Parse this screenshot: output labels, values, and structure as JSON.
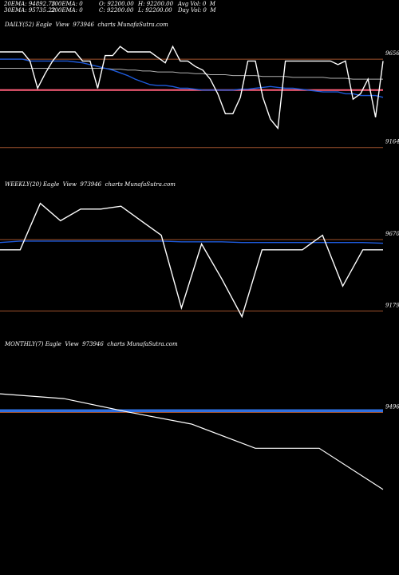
{
  "header": {
    "ema20": "20EMA: 94892.73",
    "ema100": "100EMA: 0",
    "open": "O: 92200.00",
    "high": "H: 92200.00",
    "avgvol": "Avg Vol: 0  M",
    "ema30": "30EMA: 95735.22",
    "ema200": "200EMA: 0",
    "close": "C: 92200.00",
    "low": "L: 92200.00",
    "dayvol": "Day Vol: 0  M"
  },
  "chart_data": [
    {
      "type": "line",
      "title": "DAILY(52) Eagle  View  973946  charts MunafaSutra.com",
      "ylim": [
        90000,
        98000
      ],
      "x": [
        1,
        2,
        3,
        4,
        5,
        6,
        7,
        8,
        9,
        10,
        11,
        12,
        13,
        14,
        15,
        16,
        17,
        18,
        19,
        20,
        21,
        22,
        23,
        24,
        25,
        26,
        27,
        28,
        29,
        30,
        31,
        32,
        33,
        34,
        35,
        36,
        37,
        38,
        39,
        40,
        41,
        42,
        43,
        44,
        45,
        46,
        47,
        48,
        49,
        50,
        51,
        52
      ],
      "series": [
        {
          "values": [
            96900,
            96900,
            96900,
            96900,
            96400,
            94900,
            95700,
            96400,
            96900,
            96900,
            96900,
            96400,
            96400,
            94900,
            96700,
            96700,
            97200,
            96900,
            96900,
            96900,
            96900,
            96600,
            96300,
            97200,
            96400,
            96400,
            96100,
            95900,
            95400,
            94600,
            93500,
            93500,
            94400,
            96400,
            96400,
            94400,
            93200,
            92700,
            96400,
            96400,
            96400,
            96400,
            96400,
            96400,
            96400,
            96200,
            96400,
            94300,
            94600,
            95400,
            93300,
            96400
          ]
        },
        {
          "values": [
            96500,
            96500,
            96500,
            96500,
            96400,
            96400,
            96400,
            96400,
            96400,
            96400,
            96350,
            96300,
            96200,
            96100,
            96000,
            95900,
            95750,
            95600,
            95400,
            95250,
            95100,
            95050,
            95050,
            95000,
            94900,
            94900,
            94850,
            94800,
            94800,
            94800,
            94800,
            94800,
            94850,
            94850,
            94900,
            94950,
            95000,
            94950,
            94900,
            94900,
            94850,
            94800,
            94750,
            94700,
            94700,
            94700,
            94600,
            94600,
            94500,
            94500,
            94500,
            94400
          ]
        },
        {
          "values": [
            96000,
            96000,
            96000,
            96000,
            96000,
            96000,
            96000,
            96000,
            96000,
            96000,
            96000,
            96000,
            96000,
            96000,
            96000,
            95950,
            95950,
            95900,
            95900,
            95850,
            95850,
            95800,
            95800,
            95800,
            95750,
            95750,
            95700,
            95700,
            95650,
            95650,
            95650,
            95600,
            95600,
            95600,
            95600,
            95550,
            95550,
            95550,
            95550,
            95500,
            95500,
            95500,
            95500,
            95500,
            95450,
            95450,
            95450,
            95400,
            95400,
            95400,
            95400,
            95400
          ]
        },
        {
          "values": [
            94800,
            94800,
            94800,
            94800,
            94800,
            94800,
            94800,
            94800,
            94800,
            94800,
            94800,
            94800,
            94800,
            94800,
            94800,
            94800,
            94800,
            94800,
            94800,
            94800,
            94800,
            94800,
            94800,
            94800,
            94800,
            94800,
            94800,
            94800,
            94800,
            94800,
            94800,
            94800,
            94800,
            94800,
            94800,
            94800,
            94800,
            94800,
            94800,
            94800,
            94800,
            94800,
            94800,
            94800,
            94800,
            94800,
            94800,
            94800,
            94800,
            94800,
            94800,
            94800
          ]
        }
      ],
      "hlines": {
        "upper": 96500,
        "lower": 91640
      },
      "tick_labels": [
        "9656",
        "9164"
      ]
    },
    {
      "type": "line",
      "title": "WEEKLY(20) Eagle  View  973946  charts MunafaSutra.com",
      "ylim": [
        90000,
        100000
      ],
      "x": [
        1,
        2,
        3,
        4,
        5,
        6,
        7,
        8,
        9,
        10,
        11,
        12,
        13,
        14,
        15,
        16,
        17,
        18,
        19,
        20
      ],
      "series": [
        {
          "values": [
            96000,
            96000,
            99200,
            98000,
            98800,
            98800,
            99000,
            98000,
            97000,
            92000,
            96400,
            94000,
            91400,
            96000,
            96000,
            96000,
            97000,
            93500,
            96000,
            96000
          ]
        },
        {
          "values": [
            96500,
            96600,
            96600,
            96600,
            96600,
            96600,
            96600,
            96600,
            96600,
            96550,
            96550,
            96550,
            96500,
            96500,
            96500,
            96500,
            96500,
            96500,
            96500,
            96450
          ]
        }
      ],
      "hlines": {
        "upper": 96700,
        "lower": 91790
      },
      "tick_labels": [
        "9670",
        "9179"
      ]
    },
    {
      "type": "line",
      "title": "MONTHLY(7) Eagle  View  973946  charts MunafaSutra.com",
      "ylim": [
        88000,
        100000
      ],
      "x": [
        1,
        2,
        3,
        4,
        5,
        6,
        7
      ],
      "series": [
        {
          "values": [
            96500,
            96100,
            95000,
            94000,
            92000,
            92000,
            88600
          ]
        },
        {
          "values": [
            95100,
            95100,
            95100,
            95100,
            95100,
            95100,
            95100
          ]
        }
      ],
      "hlines": {
        "upper": 94960
      },
      "tick_labels": [
        "9496"
      ]
    }
  ]
}
